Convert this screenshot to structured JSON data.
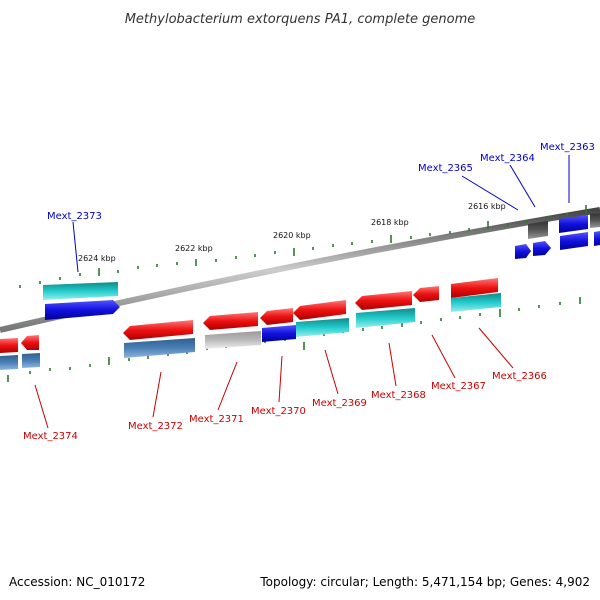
{
  "title": "Methylobacterium extorquens PA1, complete genome",
  "footer": {
    "accession": "Accession: NC_010172",
    "summary": "Topology: circular; Length: 5,471,154 bp; Genes: 4,902"
  },
  "scale_labels": [
    "2624 kbp",
    "2622 kbp",
    "2620 kbp",
    "2618 kbp",
    "2616 kbp"
  ],
  "genes_top": [
    "Mext_2373",
    "Mext_2365",
    "Mext_2364",
    "Mext_2363"
  ],
  "genes_bottom": [
    "Mext_2374",
    "Mext_2372",
    "Mext_2371",
    "Mext_2370",
    "Mext_2369",
    "Mext_2368",
    "Mext_2367",
    "Mext_2366"
  ],
  "colors": {
    "red": "#ee1111",
    "cyan": "#22cccc",
    "blue": "#1111dd",
    "steel": "#4a7fb5",
    "gray": "#bbbbbb",
    "dark_gray": "#555555",
    "tick": "#2a7a2a",
    "label_top": "#0000cc",
    "label_bottom": "#cc0000"
  }
}
